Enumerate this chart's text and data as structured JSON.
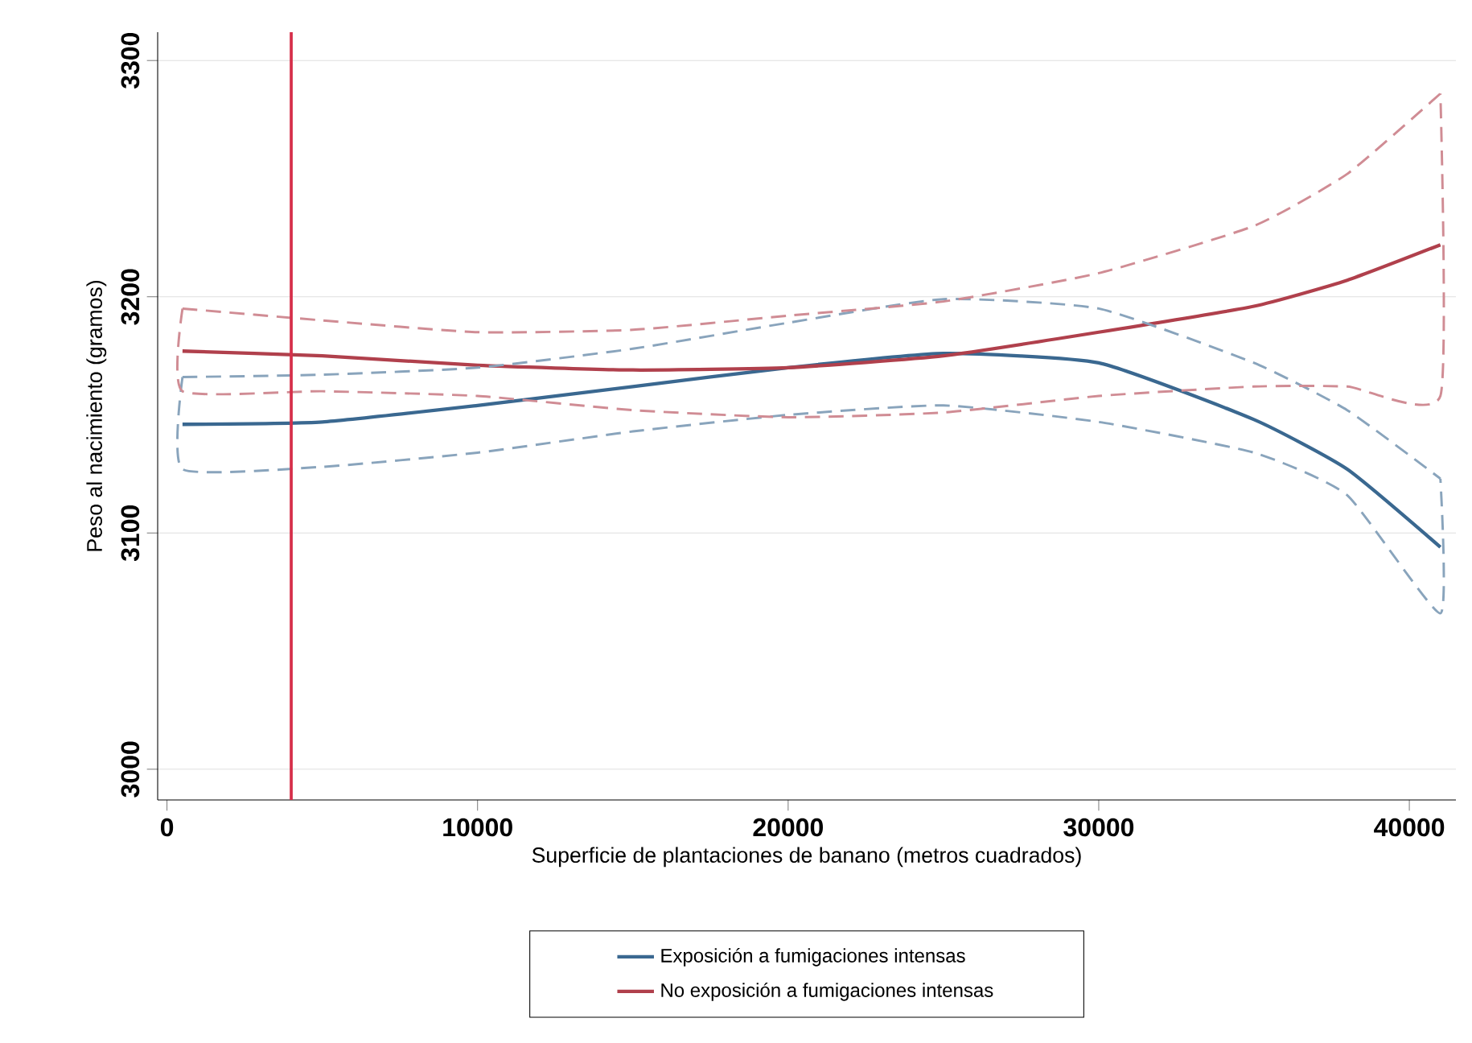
{
  "chart_data": {
    "type": "line",
    "xlabel": "Superficie de plantaciones de banano (metros cuadrados)",
    "ylabel": "Peso al nacimiento (gramos)",
    "x": [
      500,
      5000,
      10000,
      15000,
      20000,
      25000,
      30000,
      35000,
      38000,
      41000
    ],
    "series": [
      {
        "name": "Exposición a fumigaciones intensas",
        "color": "#3a6890",
        "values": [
          3146,
          3147,
          3154,
          3162,
          3170,
          3176,
          3172,
          3148,
          3127,
          3094
        ]
      },
      {
        "name": "No exposición a fumigaciones intensas",
        "color": "#b0404c",
        "values": [
          3177,
          3175,
          3171,
          3169,
          3170,
          3175,
          3185,
          3196,
          3207,
          3222
        ]
      },
      {
        "color": "#89a4bc",
        "line_style": "dashed",
        "values": [
          3166,
          3167,
          3170,
          3178,
          3189,
          3199,
          3195,
          3172,
          3152,
          3123
        ]
      },
      {
        "color": "#89a4bc",
        "line_style": "dashed",
        "x": [
          500,
          500,
          5000,
          10000,
          15000,
          20000,
          25000,
          30000,
          35000,
          38000,
          41000,
          41000
        ],
        "values": [
          3166,
          3127,
          3128,
          3134,
          3143,
          3150,
          3154,
          3147,
          3134,
          3116,
          3066,
          3123
        ]
      },
      {
        "color": "#d08c94",
        "line_style": "dashed",
        "values": [
          3195,
          3190,
          3185,
          3186,
          3192,
          3198,
          3210,
          3230,
          3252,
          3286
        ]
      },
      {
        "color": "#d08c94",
        "line_style": "dashed",
        "x": [
          500,
          500,
          5000,
          10000,
          15000,
          20000,
          25000,
          30000,
          35000,
          38000,
          41000,
          41000
        ],
        "values": [
          3195,
          3160,
          3160,
          3158,
          3152,
          3149,
          3151,
          3158,
          3162,
          3162,
          3158,
          3286
        ]
      }
    ],
    "xlim": [
      -300,
      41500
    ],
    "ylim": [
      2987,
      3312
    ],
    "xticks": [
      0,
      10000,
      20000,
      30000,
      40000
    ],
    "yticks": [
      3000,
      3100,
      3200,
      3300
    ],
    "grid": "y",
    "legend": "bottom",
    "ref_lines": [
      {
        "axis": "x",
        "value": 4000,
        "color": "#d62f4a"
      }
    ]
  }
}
